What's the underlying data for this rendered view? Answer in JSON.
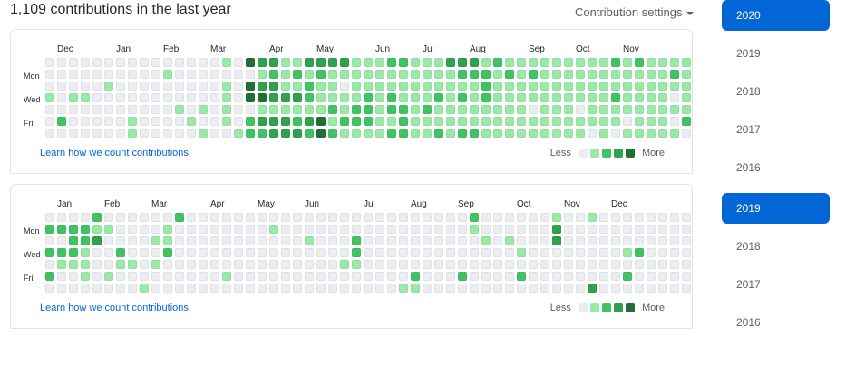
{
  "header": {
    "title": "1,109 contributions in the last year",
    "settings_label": "Contribution settings"
  },
  "graphs": [
    {
      "months": [
        {
          "label": "Dec",
          "week": 1
        },
        {
          "label": "Jan",
          "week": 6
        },
        {
          "label": "Feb",
          "week": 10
        },
        {
          "label": "Mar",
          "week": 14
        },
        {
          "label": "Apr",
          "week": 19
        },
        {
          "label": "May",
          "week": 23
        },
        {
          "label": "Jun",
          "week": 28
        },
        {
          "label": "Jul",
          "week": 32
        },
        {
          "label": "Aug",
          "week": 36
        },
        {
          "label": "Sep",
          "week": 41
        },
        {
          "label": "Oct",
          "week": 45
        },
        {
          "label": "Nov",
          "week": 49
        }
      ],
      "days": [
        "Mon",
        "Wed",
        "Fri"
      ],
      "rows": [
        "0000000000000001043311333311122111333121111111112121111",
        "0000000000100000001212121111111111122212121111111111121",
        "0000010000000001043311211011111111111211111111111111111",
        "1011000000000001044333211112121112121211111111112111101",
        "0000000000010101001111112122122121111111101110111111111",
        "0200000100001001023332341222112111111111111111111011102",
        "0000000100000100122333242111122112122111111111010111110"
      ],
      "learn_label": "Learn how we count contributions.",
      "legend_less": "Less",
      "legend_more": "More"
    },
    {
      "months": [
        {
          "label": "Jan",
          "week": 1
        },
        {
          "label": "Feb",
          "week": 5
        },
        {
          "label": "Mar",
          "week": 9
        },
        {
          "label": "Apr",
          "week": 14
        },
        {
          "label": "May",
          "week": 18
        },
        {
          "label": "Jun",
          "week": 22
        },
        {
          "label": "Jul",
          "week": 27
        },
        {
          "label": "Aug",
          "week": 31
        },
        {
          "label": "Sep",
          "week": 35
        },
        {
          "label": "Oct",
          "week": 40
        },
        {
          "label": "Nov",
          "week": 44
        },
        {
          "label": "Dec",
          "week": 48
        }
      ],
      "days": [
        "Mon",
        "Wed",
        "Fri"
      ],
      "rows": [
        "0000200000020000000000000000000000002000000100100000000",
        "2222110000100000000100000000000000001000000300000000000",
        "0022300001100000000000100020000000000101000300000000000",
        "2221002000200000000000000020000000000000100000000120000",
        "0111001101000000000000000110000000000000000000000000000",
        "2001010000000001000000000000000200020000200000000200000",
        "0000000010000000000000000000001100000000000000300000000"
      ],
      "learn_label": "Learn how we count contributions.",
      "legend_less": "Less",
      "legend_more": "More"
    }
  ],
  "level_colors": [
    "#ebedf0",
    "#9be9a8",
    "#40c463",
    "#30a14e",
    "#216e39"
  ],
  "years": {
    "top": [
      {
        "label": "2020",
        "active": true
      },
      {
        "label": "2019",
        "active": false
      },
      {
        "label": "2018",
        "active": false
      },
      {
        "label": "2017",
        "active": false
      },
      {
        "label": "2016",
        "active": false
      }
    ],
    "bottom": [
      {
        "label": "2019",
        "active": true
      },
      {
        "label": "2018",
        "active": false
      },
      {
        "label": "2017",
        "active": false
      },
      {
        "label": "2016",
        "active": false
      }
    ]
  }
}
